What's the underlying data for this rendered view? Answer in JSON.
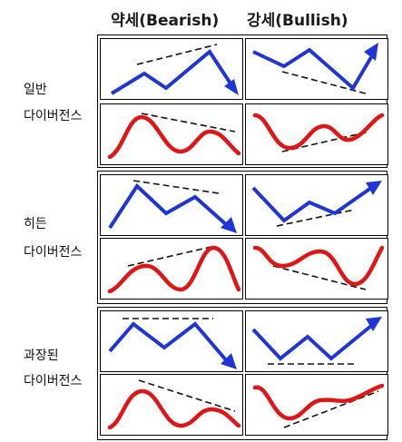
{
  "headers": {
    "bearish": "약세(Bearish)",
    "bullish": "강세(Bullish)"
  },
  "rows": [
    {
      "line1": "일반",
      "line2": "다이버전스"
    },
    {
      "line1": "히든",
      "line2": "다이버전스"
    },
    {
      "line1": "과장된",
      "line2": "다이버전스"
    }
  ],
  "colors": {
    "price_line": "#1f35d6",
    "oscillator_line": "#e01515",
    "trend_line": "#111111"
  }
}
